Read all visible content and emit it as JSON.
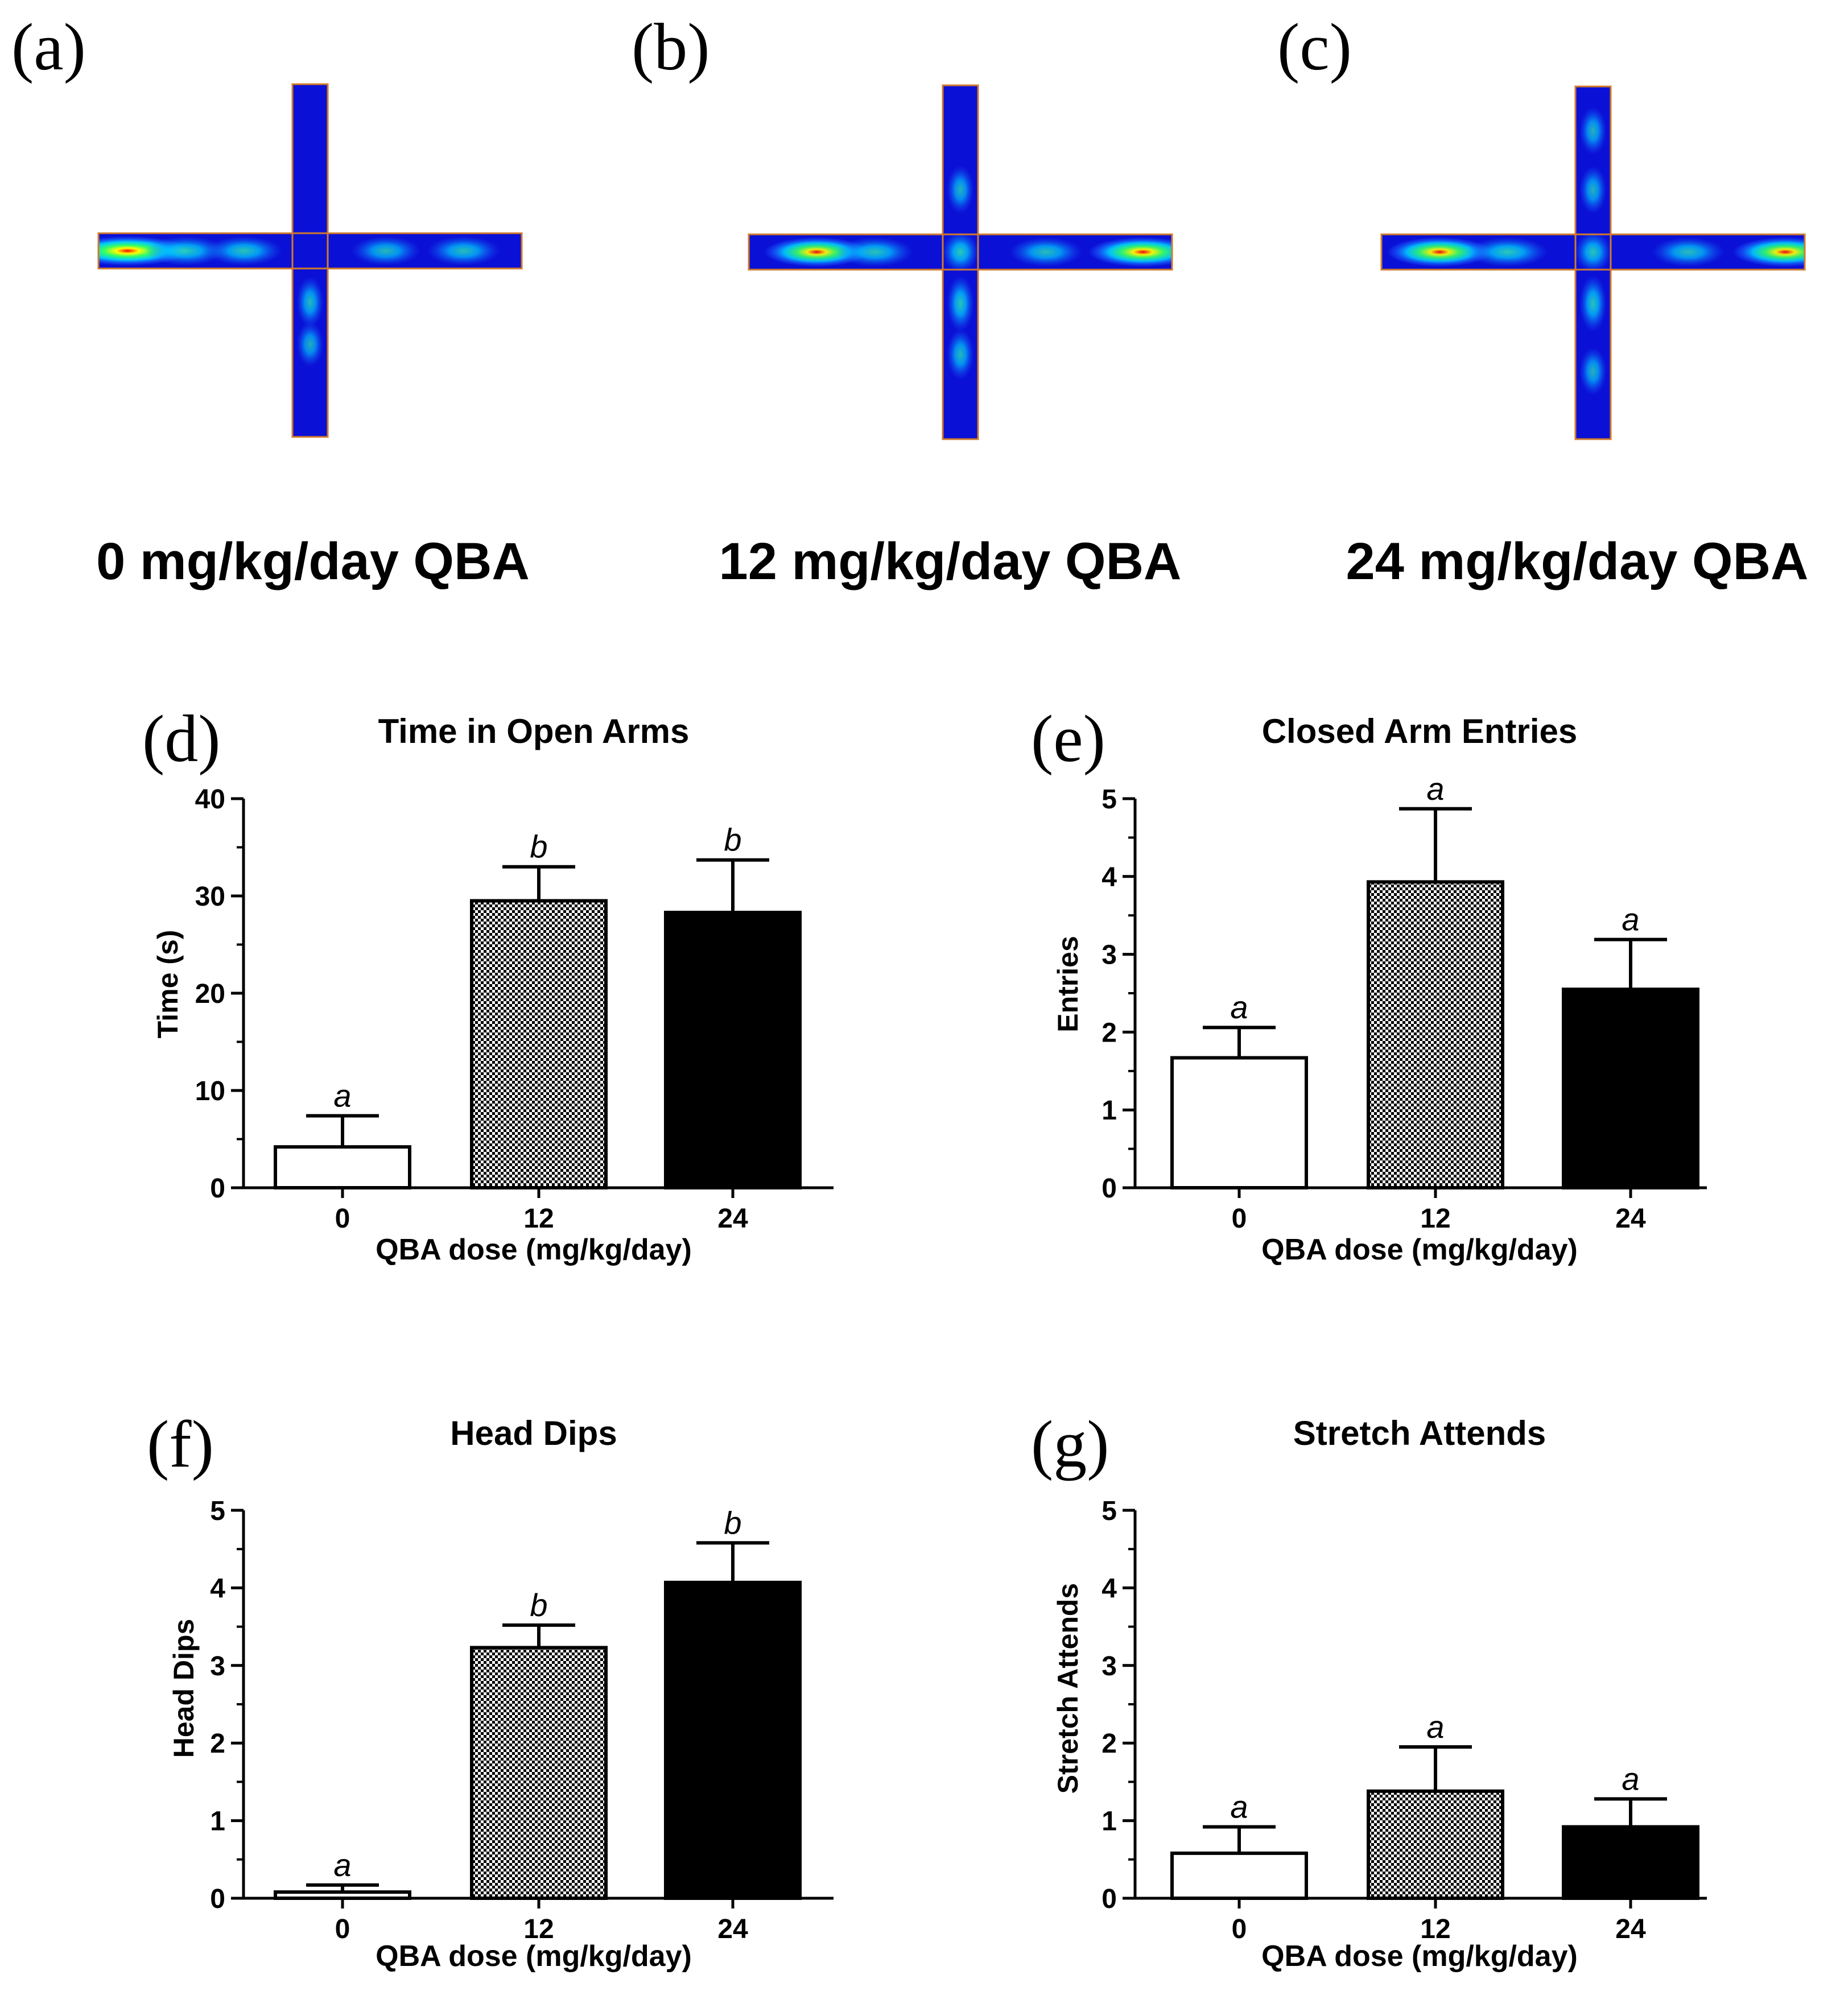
{
  "heatmaps": [
    {
      "panel_label": "(a)",
      "caption": "0 mg/kg/day QBA",
      "hotspots": [
        {
          "arm": "left",
          "pos": 0.85,
          "intensity": 1.0
        },
        {
          "arm": "left",
          "pos": 0.55,
          "intensity": 0.45
        },
        {
          "arm": "left",
          "pos": 0.25,
          "intensity": 0.4
        },
        {
          "arm": "right",
          "pos": 0.3,
          "intensity": 0.3
        },
        {
          "arm": "right",
          "pos": 0.7,
          "intensity": 0.35
        },
        {
          "arm": "down",
          "pos": 0.2,
          "intensity": 0.3
        },
        {
          "arm": "down",
          "pos": 0.45,
          "intensity": 0.2
        }
      ]
    },
    {
      "panel_label": "(b)",
      "caption": "12 mg/kg/day QBA",
      "hotspots": [
        {
          "arm": "left",
          "pos": 0.65,
          "intensity": 0.75
        },
        {
          "arm": "left",
          "pos": 0.35,
          "intensity": 0.4
        },
        {
          "arm": "right",
          "pos": 0.35,
          "intensity": 0.35
        },
        {
          "arm": "right",
          "pos": 0.85,
          "intensity": 0.8
        },
        {
          "arm": "center",
          "pos": 0.5,
          "intensity": 0.45
        },
        {
          "arm": "down",
          "pos": 0.2,
          "intensity": 0.4
        },
        {
          "arm": "down",
          "pos": 0.5,
          "intensity": 0.3
        },
        {
          "arm": "up",
          "pos": 0.3,
          "intensity": 0.25
        }
      ]
    },
    {
      "panel_label": "(c)",
      "caption": "24 mg/kg/day QBA",
      "hotspots": [
        {
          "arm": "left",
          "pos": 0.7,
          "intensity": 0.75
        },
        {
          "arm": "left",
          "pos": 0.35,
          "intensity": 0.45
        },
        {
          "arm": "right",
          "pos": 0.4,
          "intensity": 0.35
        },
        {
          "arm": "right",
          "pos": 0.9,
          "intensity": 0.75
        },
        {
          "arm": "center",
          "pos": 0.5,
          "intensity": 0.4
        },
        {
          "arm": "down",
          "pos": 0.2,
          "intensity": 0.4
        },
        {
          "arm": "down",
          "pos": 0.6,
          "intensity": 0.25
        },
        {
          "arm": "up",
          "pos": 0.3,
          "intensity": 0.25
        },
        {
          "arm": "up",
          "pos": 0.7,
          "intensity": 0.25
        }
      ]
    }
  ],
  "chart_data": [
    {
      "panel_label": "(d)",
      "type": "bar",
      "title": "Time in Open Arms",
      "xlabel": "QBA dose (mg/kg/day)",
      "ylabel": "Time (s)",
      "categories": [
        "0",
        "12",
        "24"
      ],
      "values": [
        4.2,
        29.5,
        28.3
      ],
      "errors": [
        3.2,
        3.5,
        5.4
      ],
      "letters": [
        "a",
        "b",
        "b"
      ],
      "fills": [
        "white",
        "checker",
        "black"
      ],
      "ylim": [
        0,
        40
      ],
      "yticks": [
        0,
        10,
        20,
        30,
        40
      ]
    },
    {
      "panel_label": "(e)",
      "type": "bar",
      "title": "Closed Arm Entries",
      "xlabel": "QBA dose (mg/kg/day)",
      "ylabel": "Entries",
      "categories": [
        "0",
        "12",
        "24"
      ],
      "values": [
        1.67,
        3.93,
        2.55
      ],
      "errors": [
        0.39,
        0.94,
        0.64
      ],
      "letters": [
        "a",
        "a",
        "a"
      ],
      "fills": [
        "white",
        "checker",
        "black"
      ],
      "ylim": [
        0,
        5
      ],
      "yticks": [
        0,
        1,
        2,
        3,
        4,
        5
      ]
    },
    {
      "panel_label": "(f)",
      "type": "bar",
      "title": "Head Dips",
      "xlabel": "QBA dose (mg/kg/day)",
      "ylabel": "Head Dips",
      "categories": [
        "0",
        "12",
        "24"
      ],
      "values": [
        0.08,
        3.23,
        4.07
      ],
      "errors": [
        0.09,
        0.29,
        0.51
      ],
      "letters": [
        "a",
        "b",
        "b"
      ],
      "fills": [
        "white",
        "checker",
        "black"
      ],
      "ylim": [
        0,
        5
      ],
      "yticks": [
        0,
        1,
        2,
        3,
        4,
        5
      ]
    },
    {
      "panel_label": "(g)",
      "type": "bar",
      "title": "Stretch Attends",
      "xlabel": "QBA dose (mg/kg/day)",
      "ylabel": "Stretch Attends",
      "categories": [
        "0",
        "12",
        "24"
      ],
      "values": [
        0.58,
        1.38,
        0.92
      ],
      "errors": [
        0.34,
        0.57,
        0.36
      ],
      "letters": [
        "a",
        "a",
        "a"
      ],
      "fills": [
        "white",
        "checker",
        "black"
      ],
      "ylim": [
        0,
        5
      ],
      "yticks": [
        0,
        1,
        2,
        3,
        4,
        5
      ]
    }
  ],
  "colors": {
    "maze_bg": "#0a10d6",
    "maze_border": "#d27a2a",
    "axis": "#000000"
  }
}
